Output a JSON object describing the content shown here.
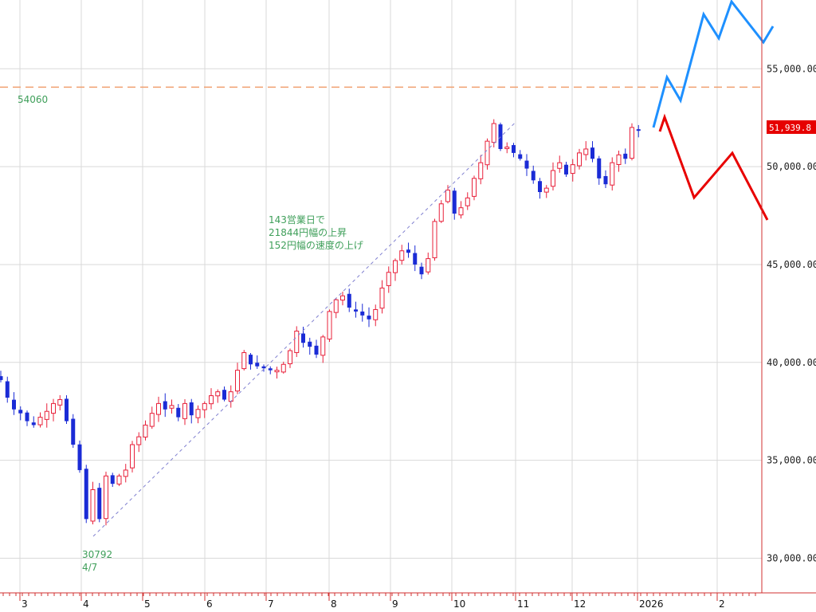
{
  "chart_data": {
    "type": "candlestick",
    "y_ticks": [
      30000,
      35000,
      40000,
      45000,
      50000,
      55000
    ],
    "y_tick_labels": [
      "30,000.00",
      "35,000.00",
      "40,000.00",
      "45,000.00",
      "50,000.00",
      "55,000.00"
    ],
    "x_tick_labels": [
      "3",
      "4",
      "5",
      "6",
      "7",
      "8",
      "9",
      "10",
      "11",
      "12",
      "2026",
      "2"
    ],
    "ylim": [
      29400,
      58200
    ],
    "grid": true,
    "current_price_label": "51,939.8",
    "current_price": 51939.8,
    "reference_line": {
      "value": 54060,
      "label": "54060",
      "color": "#f0a070"
    },
    "annotations": {
      "low_value": "30792",
      "low_date": "4/7",
      "note_lines": [
        "143営業日で",
        "21844円幅の上昇",
        "152円幅の速度の上げ"
      ]
    },
    "trendline": {
      "from": {
        "date": "4/7",
        "value": 30792
      },
      "to": {
        "date": "11",
        "value": 52636
      }
    },
    "colors": {
      "up": "#e8203a",
      "down": "#1a2bd6",
      "grid": "#d9d9d9",
      "axis": "#d03030",
      "bull_scenario": "#1e90ff",
      "bear_scenario": "#e80000",
      "trendline": "#8080d0",
      "annotation": "#3f9f5a"
    },
    "closes": [
      39100,
      38200,
      37600,
      37400,
      37000,
      36800,
      37200,
      37500,
      37900,
      38100,
      37000,
      35800,
      34500,
      32000,
      33500,
      32000,
      34200,
      33800,
      34200,
      34500,
      35800,
      36200,
      36800,
      37400,
      37900,
      37600,
      37800,
      37200,
      37900,
      37300,
      37600,
      37900,
      38300,
      38500,
      38100,
      38500,
      39600,
      40500,
      39900,
      39800,
      39700,
      39600,
      39600,
      39900,
      40600,
      41600,
      41000,
      40800,
      40400,
      41300,
      42600,
      43200,
      43400,
      42800,
      42600,
      42400,
      42200,
      42700,
      43800,
      44600,
      45200,
      45700,
      45600,
      45000,
      44500,
      45300,
      47200,
      48100,
      48800,
      47600,
      47900,
      48400,
      49400,
      50200,
      51300,
      52200,
      50900,
      51000,
      50700,
      50400,
      49900,
      49300,
      48700,
      48900,
      49800,
      50200,
      49600,
      50100,
      50700,
      50900,
      50400,
      49400,
      49100,
      50200,
      50600,
      50400,
      52000,
      51900
    ],
    "scenario_bull": [
      51900,
      53700,
      55300,
      54200,
      57400,
      56300,
      58100,
      57300,
      56500,
      57000
    ],
    "scenario_bear": [
      51300,
      52500,
      50600,
      48600,
      49400,
      50500,
      48800,
      47100
    ]
  }
}
